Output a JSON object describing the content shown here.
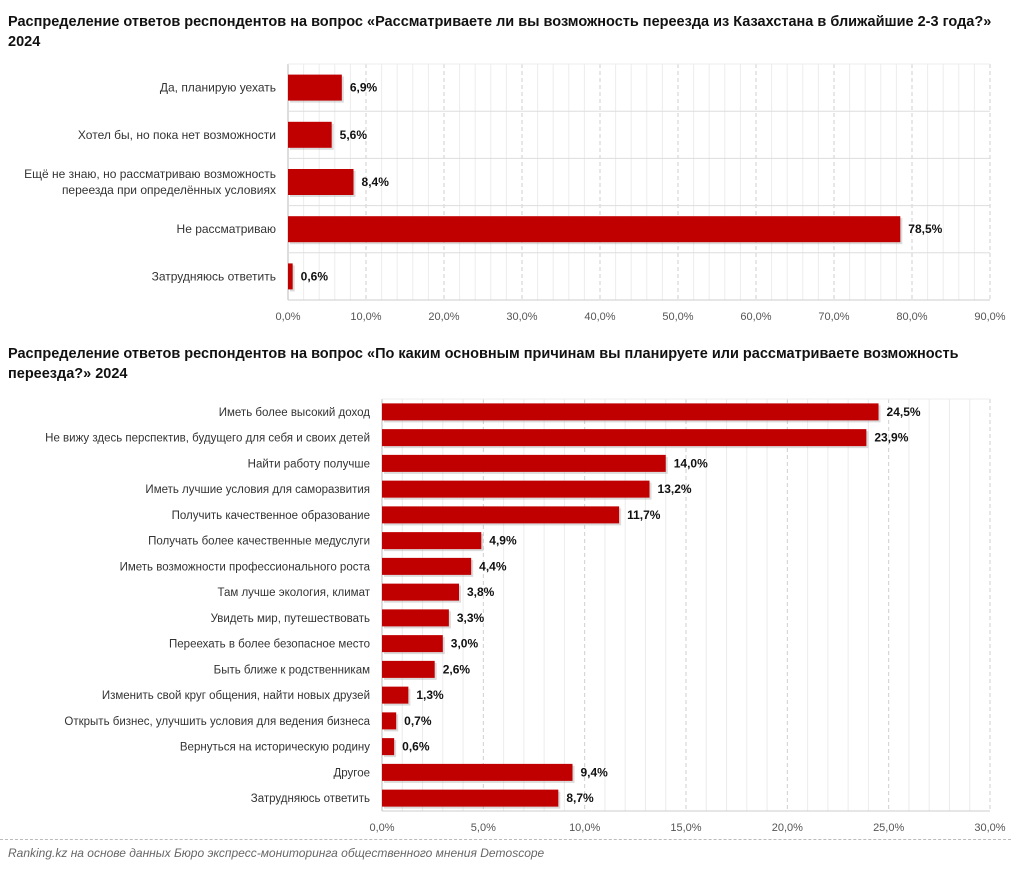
{
  "colors": {
    "bar": "#C00000",
    "grid_major": "#cfcfcf",
    "grid_minor": "#ececec"
  },
  "chart_data": [
    {
      "type": "bar",
      "orientation": "horizontal",
      "title": "Распределение ответов респондентов на вопрос «Рассматриваете ли вы возможность переезда из Казахстана в ближайшие 2-3 года?» 2024",
      "categories": [
        "Да, планирую уехать",
        "Хотел бы, но пока нет возможности",
        "Ещё не знаю, но рассматриваю возможность переезда при определённых условиях",
        "Не рассматриваю",
        "Затрудняюсь ответить"
      ],
      "values": [
        6.9,
        5.6,
        8.4,
        78.5,
        0.6
      ],
      "labels": [
        "6,9%",
        "5,6%",
        "8,4%",
        "78,5%",
        "0,6%"
      ],
      "xlim": [
        0,
        90
      ],
      "ticks": [
        "0,0%",
        "10,0%",
        "20,0%",
        "30,0%",
        "40,0%",
        "50,0%",
        "60,0%",
        "70,0%",
        "80,0%",
        "90,0%"
      ],
      "grid": true
    },
    {
      "type": "bar",
      "orientation": "horizontal",
      "title": "Распределение ответов респондентов на вопрос «По каким основным причинам вы планируете или рассматриваете возможность переезда?» 2024",
      "categories": [
        "Иметь более высокий доход",
        "Не вижу здесь перспектив, будущего для себя и своих детей",
        "Найти работу получше",
        "Иметь лучшие условия для саморазвития",
        "Получить качественное образование",
        "Получать более качественные медуслуги",
        "Иметь возможности профессионального роста",
        "Там лучше экология, климат",
        "Увидеть мир, путешествовать",
        "Переехать в более безопасное место",
        "Быть ближе к родственникам",
        "Изменить свой круг общения, найти новых друзей",
        "Открыть бизнес, улучшить условия для ведения бизнеса",
        "Вернуться на историческую родину",
        "Другое",
        "Затрудняюсь ответить"
      ],
      "values": [
        24.5,
        23.9,
        14.0,
        13.2,
        11.7,
        4.9,
        4.4,
        3.8,
        3.3,
        3.0,
        2.6,
        1.3,
        0.7,
        0.6,
        9.4,
        8.7
      ],
      "labels": [
        "24,5%",
        "23,9%",
        "14,0%",
        "13,2%",
        "11,7%",
        "4,9%",
        "4,4%",
        "3,8%",
        "3,3%",
        "3,0%",
        "2,6%",
        "1,3%",
        "0,7%",
        "0,6%",
        "9,4%",
        "8,7%"
      ],
      "xlim": [
        0,
        30
      ],
      "ticks": [
        "0,0%",
        "5,0%",
        "10,0%",
        "15,0%",
        "20,0%",
        "25,0%",
        "30,0%"
      ],
      "grid": true
    }
  ],
  "source": "Ranking.kz на основе данных Бюро экспресс-мониторинга общественного мнения Demoscope"
}
